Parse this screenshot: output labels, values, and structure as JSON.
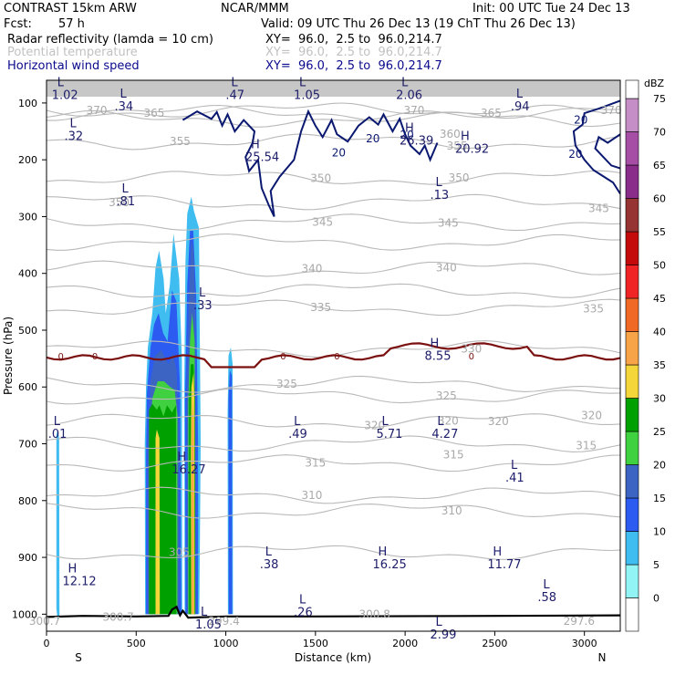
{
  "header": {
    "model": "CONTRAST 15km ARW",
    "center": "NCAR/MMM",
    "init": "Init: 00 UTC Tue 24 Dec 13",
    "fcst_label": "Fcst:",
    "fcst_value": "57 h",
    "valid": "Valid: 09 UTC Thu 26 Dec 13 (19 ChT Thu 26 Dec 13)",
    "fields": [
      {
        "name": "Radar reflectivity (lamda = 10 cm)",
        "xy": "XY=  96.0,  2.5 to  96.0,214.7",
        "color": "#000000"
      },
      {
        "name": "Potential temperature",
        "xy": "XY=  96.0,  2.5 to  96.0,214.7",
        "color": "#c2c2c2"
      },
      {
        "name": "Horizontal wind speed",
        "xy": "XY=  96.0,  2.5 to  96.0,214.7",
        "color": "#0a0a8c"
      }
    ]
  },
  "chart_data": {
    "type": "cross-section",
    "xlabel": "Distance (km)",
    "ylabel": "Pressure (hPa)",
    "xlim": [
      0,
      3200
    ],
    "ylim": [
      1030,
      60
    ],
    "x_ticks": [
      0,
      500,
      1000,
      1500,
      2000,
      2500,
      3000
    ],
    "y_ticks": [
      100,
      200,
      300,
      400,
      500,
      600,
      700,
      800,
      900,
      1000
    ],
    "x_end_labels": {
      "left": "S",
      "right": "N"
    },
    "colorbar": {
      "unit": "dBZ",
      "levels": [
        0,
        5,
        10,
        15,
        20,
        25,
        30,
        35,
        40,
        45,
        50,
        55,
        60,
        65,
        70,
        75
      ],
      "colors": [
        "#ffffff",
        "#92f4f4",
        "#3fbcf0",
        "#2b5bf0",
        "#3c64c2",
        "#3fd13f",
        "#00a000",
        "#f4d63a",
        "#f7a448",
        "#f06a26",
        "#f02424",
        "#c40a0a",
        "#963434",
        "#8a2c8a",
        "#a64ea6",
        "#c68ec6"
      ]
    },
    "reflectivity_cells": [
      {
        "dbz": 10,
        "points": [
          [
            55,
            960
          ],
          [
            55,
            685
          ],
          [
            62,
            675
          ],
          [
            70,
            690
          ],
          [
            72,
            1005
          ],
          [
            62,
            1010
          ],
          [
            55,
            990
          ]
        ]
      },
      {
        "dbz": 10,
        "points": [
          [
            550,
            1000
          ],
          [
            548,
            700
          ],
          [
            555,
            600
          ],
          [
            565,
            530
          ],
          [
            590,
            470
          ],
          [
            608,
            390
          ],
          [
            628,
            360
          ],
          [
            653,
            410
          ],
          [
            665,
            470
          ],
          [
            688,
            420
          ],
          [
            708,
            330
          ],
          [
            740,
            410
          ],
          [
            755,
            555
          ],
          [
            757,
            1000
          ]
        ]
      },
      {
        "dbz": 10,
        "points": [
          [
            770,
            1000
          ],
          [
            768,
            600
          ],
          [
            775,
            380
          ],
          [
            785,
            295
          ],
          [
            808,
            265
          ],
          [
            822,
            290
          ],
          [
            850,
            320
          ],
          [
            860,
            700
          ],
          [
            852,
            1000
          ]
        ]
      },
      {
        "dbz": 10,
        "points": [
          [
            1012,
            1000
          ],
          [
            1010,
            650
          ],
          [
            1015,
            545
          ],
          [
            1028,
            530
          ],
          [
            1038,
            560
          ],
          [
            1040,
            1000
          ]
        ]
      },
      {
        "dbz": 15,
        "points": [
          [
            555,
            1000
          ],
          [
            555,
            720
          ],
          [
            560,
            610
          ],
          [
            580,
            530
          ],
          [
            600,
            490
          ],
          [
            625,
            470
          ],
          [
            650,
            505
          ],
          [
            675,
            520
          ],
          [
            700,
            430
          ],
          [
            725,
            450
          ],
          [
            745,
            600
          ],
          [
            752,
            1000
          ]
        ]
      },
      {
        "dbz": 15,
        "points": [
          [
            775,
            1000
          ],
          [
            773,
            620
          ],
          [
            785,
            420
          ],
          [
            800,
            325
          ],
          [
            818,
            325
          ],
          [
            835,
            440
          ],
          [
            845,
            700
          ],
          [
            845,
            1000
          ]
        ]
      },
      {
        "dbz": 15,
        "points": [
          [
            1016,
            1000
          ],
          [
            1015,
            620
          ],
          [
            1022,
            570
          ],
          [
            1034,
            580
          ],
          [
            1036,
            1000
          ]
        ]
      },
      {
        "dbz": 20,
        "points": [
          [
            565,
            1000
          ],
          [
            565,
            700
          ],
          [
            580,
            590
          ],
          [
            605,
            545
          ],
          [
            640,
            535
          ],
          [
            680,
            560
          ],
          [
            705,
            540
          ],
          [
            725,
            570
          ],
          [
            738,
            680
          ],
          [
            740,
            1000
          ]
        ]
      },
      {
        "dbz": 20,
        "points": [
          [
            785,
            1000
          ],
          [
            783,
            620
          ],
          [
            795,
            440
          ],
          [
            808,
            340
          ],
          [
            820,
            360
          ],
          [
            830,
            470
          ],
          [
            835,
            1000
          ]
        ]
      },
      {
        "dbz": 25,
        "points": [
          [
            575,
            1000
          ],
          [
            575,
            700
          ],
          [
            590,
            620
          ],
          [
            620,
            590
          ],
          [
            655,
            590
          ],
          [
            690,
            600
          ],
          [
            715,
            605
          ],
          [
            730,
            650
          ],
          [
            730,
            1000
          ]
        ]
      },
      {
        "dbz": 25,
        "points": [
          [
            790,
            1000
          ],
          [
            790,
            630
          ],
          [
            800,
            520
          ],
          [
            812,
            470
          ],
          [
            826,
            520
          ],
          [
            830,
            1000
          ]
        ]
      },
      {
        "dbz": 30,
        "points": [
          [
            572,
            1000
          ],
          [
            572,
            640
          ],
          [
            590,
            630
          ],
          [
            615,
            640
          ],
          [
            630,
            632
          ],
          [
            652,
            652
          ],
          [
            672,
            632
          ],
          [
            700,
            645
          ],
          [
            722,
            632
          ],
          [
            724,
            1000
          ]
        ]
      },
      {
        "dbz": 30,
        "points": [
          [
            795,
            1000
          ],
          [
            795,
            620
          ],
          [
            805,
            560
          ],
          [
            820,
            560
          ],
          [
            828,
            620
          ],
          [
            828,
            1000
          ]
        ]
      },
      {
        "dbz": 35,
        "points": [
          [
            608,
            1000
          ],
          [
            608,
            690
          ],
          [
            615,
            675
          ],
          [
            630,
            690
          ],
          [
            632,
            1000
          ]
        ]
      },
      {
        "dbz": 35,
        "points": [
          [
            807,
            1000
          ],
          [
            805,
            720
          ],
          [
            808,
            600
          ],
          [
            820,
            575
          ],
          [
            825,
            620
          ],
          [
            825,
            1000
          ]
        ]
      },
      {
        "dbz": 40,
        "points": [
          [
            811,
            1000
          ],
          [
            810,
            680
          ],
          [
            815,
            620
          ],
          [
            821,
            660
          ],
          [
            821,
            1000
          ]
        ]
      }
    ],
    "theta_labels": [
      {
        "text": "370",
        "x": 280,
        "p": 113
      },
      {
        "text": "365",
        "x": 600,
        "p": 118
      },
      {
        "text": "370",
        "x": 2050,
        "p": 113
      },
      {
        "text": "365",
        "x": 2480,
        "p": 118
      },
      {
        "text": "360",
        "x": 2250,
        "p": 155
      },
      {
        "text": "355",
        "x": 745,
        "p": 168
      },
      {
        "text": "355",
        "x": 2290,
        "p": 176
      },
      {
        "text": "370",
        "x": 3150,
        "p": 113
      },
      {
        "text": "350",
        "x": 405,
        "p": 275
      },
      {
        "text": "350",
        "x": 1530,
        "p": 233
      },
      {
        "text": "350",
        "x": 2300,
        "p": 232
      },
      {
        "text": "345",
        "x": 1540,
        "p": 310
      },
      {
        "text": "345",
        "x": 2240,
        "p": 311
      },
      {
        "text": "345",
        "x": 3080,
        "p": 286
      },
      {
        "text": "340",
        "x": 1480,
        "p": 392
      },
      {
        "text": "340",
        "x": 2230,
        "p": 390
      },
      {
        "text": "335",
        "x": 1530,
        "p": 460
      },
      {
        "text": "335",
        "x": 3050,
        "p": 462
      },
      {
        "text": "330",
        "x": 2370,
        "p": 533
      },
      {
        "text": "325",
        "x": 1340,
        "p": 595
      },
      {
        "text": "325",
        "x": 2230,
        "p": 616
      },
      {
        "text": "320",
        "x": 1830,
        "p": 668
      },
      {
        "text": "320",
        "x": 2240,
        "p": 660
      },
      {
        "text": "320",
        "x": 2520,
        "p": 661
      },
      {
        "text": "320",
        "x": 3040,
        "p": 650
      },
      {
        "text": "315",
        "x": 1500,
        "p": 734
      },
      {
        "text": "315",
        "x": 2270,
        "p": 719
      },
      {
        "text": "315",
        "x": 3010,
        "p": 703
      },
      {
        "text": "310",
        "x": 1480,
        "p": 791
      },
      {
        "text": "310",
        "x": 2260,
        "p": 818
      },
      {
        "text": "305",
        "x": 740,
        "p": 891
      },
      {
        "text": "300.8",
        "x": 1830,
        "p": 1000
      },
      {
        "text": "300.7",
        "x": 400,
        "p": 1005
      },
      {
        "text": "297.6",
        "x": 2970,
        "p": 1012
      },
      {
        "text": "299.4",
        "x": 990,
        "p": 1012
      },
      {
        "text": "300.7",
        "x": -10,
        "p": 1012
      }
    ],
    "wind_labels": [
      {
        "text": "20",
        "x": 1820,
        "p": 163
      },
      {
        "text": "20",
        "x": 1630,
        "p": 188
      },
      {
        "text": "20",
        "x": 2010,
        "p": 156
      },
      {
        "text": "20",
        "x": 2980,
        "p": 130
      },
      {
        "text": "20",
        "x": 2950,
        "p": 190
      }
    ],
    "freezing_level_label": "0",
    "freezing_level_label_x": [
      80,
      270,
      1320,
      1620,
      2370
    ],
    "extrema": [
      {
        "hl": "L",
        "value": "1.02",
        "x": 90,
        "p": 80
      },
      {
        "hl": "L",
        "value": ".34",
        "x": 440,
        "p": 100
      },
      {
        "hl": "L",
        "value": ".47",
        "x": 1060,
        "p": 80
      },
      {
        "hl": "L",
        "value": "1.05",
        "x": 1440,
        "p": 80
      },
      {
        "hl": "L",
        "value": "2.06",
        "x": 2010,
        "p": 80
      },
      {
        "hl": "L",
        "value": ".94",
        "x": 2650,
        "p": 100
      },
      {
        "hl": "L",
        "value": ".32",
        "x": 160,
        "p": 152
      },
      {
        "hl": "H",
        "value": "25.54",
        "x": 1170,
        "p": 189
      },
      {
        "hl": "H",
        "value": "26.39",
        "x": 2030,
        "p": 160
      },
      {
        "hl": "H",
        "value": "20.92",
        "x": 2340,
        "p": 175
      },
      {
        "hl": "L",
        "value": ".81",
        "x": 450,
        "p": 267
      },
      {
        "hl": "L",
        "value": ".13",
        "x": 2200,
        "p": 256
      },
      {
        "hl": "L",
        "value": ".33",
        "x": 880,
        "p": 450
      },
      {
        "hl": "H",
        "value": "8.55",
        "x": 2170,
        "p": 539
      },
      {
        "hl": "L",
        "value": ".01",
        "x": 70,
        "p": 677
      },
      {
        "hl": "L",
        "value": ".49",
        "x": 1410,
        "p": 677
      },
      {
        "hl": "L",
        "value": "5.71",
        "x": 1900,
        "p": 677
      },
      {
        "hl": "L",
        "value": "4.27",
        "x": 2210,
        "p": 677
      },
      {
        "hl": "H",
        "value": "16.27",
        "x": 760,
        "p": 739
      },
      {
        "hl": "L",
        "value": ".41",
        "x": 2620,
        "p": 754
      },
      {
        "hl": "L",
        "value": ".38",
        "x": 1250,
        "p": 906
      },
      {
        "hl": "H",
        "value": "16.25",
        "x": 1880,
        "p": 906
      },
      {
        "hl": "H",
        "value": "11.77",
        "x": 2520,
        "p": 906
      },
      {
        "hl": "H",
        "value": "12.12",
        "x": 150,
        "p": 936
      },
      {
        "hl": "L",
        "value": ".58",
        "x": 2800,
        "p": 964
      },
      {
        "hl": "L",
        "value": ".26",
        "x": 1440,
        "p": 991
      },
      {
        "hl": "L",
        "value": "1.05",
        "x": 890,
        "p": 1012
      },
      {
        "hl": "L",
        "value": "2.99",
        "x": 2200,
        "p": 1030
      }
    ]
  }
}
